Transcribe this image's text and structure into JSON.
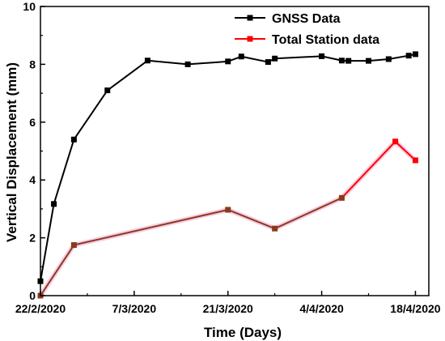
{
  "chart_data": {
    "type": "line",
    "xlabel": "Time (Days)",
    "ylabel": "Vertical Displacement (mm)",
    "xlim": [
      "2020-02-22",
      "2020-04-20"
    ],
    "ylim": [
      0,
      10
    ],
    "x_ticks": [
      {
        "date": "2020-02-22",
        "label": "22/2/2020"
      },
      {
        "date": "2020-03-07",
        "label": "7/3/2020"
      },
      {
        "date": "2020-03-21",
        "label": "21/3/2020"
      },
      {
        "date": "2020-04-04",
        "label": "4/4/2020"
      },
      {
        "date": "2020-04-18",
        "label": "18/4/2020"
      }
    ],
    "y_ticks": [
      0,
      2,
      4,
      6,
      8,
      10
    ],
    "legend_position": "top-right",
    "grid": false,
    "series": [
      {
        "name": "GNSS Data",
        "color": "#000000",
        "marker": "square",
        "points": [
          {
            "x": "2020-02-22",
            "y": 0.5
          },
          {
            "x": "2020-02-24",
            "y": 3.17
          },
          {
            "x": "2020-02-27",
            "y": 5.4
          },
          {
            "x": "2020-03-03",
            "y": 7.1
          },
          {
            "x": "2020-03-09",
            "y": 8.13
          },
          {
            "x": "2020-03-15",
            "y": 8.0
          },
          {
            "x": "2020-03-21",
            "y": 8.1
          },
          {
            "x": "2020-03-23",
            "y": 8.27
          },
          {
            "x": "2020-03-27",
            "y": 8.08
          },
          {
            "x": "2020-03-28",
            "y": 8.2
          },
          {
            "x": "2020-04-04",
            "y": 8.28
          },
          {
            "x": "2020-04-07",
            "y": 8.13
          },
          {
            "x": "2020-04-08",
            "y": 8.12
          },
          {
            "x": "2020-04-11",
            "y": 8.12
          },
          {
            "x": "2020-04-14",
            "y": 8.18
          },
          {
            "x": "2020-04-17",
            "y": 8.3
          },
          {
            "x": "2020-04-18",
            "y": 8.35
          }
        ]
      },
      {
        "name": "Total Station data",
        "color": "#ff0000",
        "line_color": "#8b3a1c",
        "marker": "square",
        "points": [
          {
            "x": "2020-02-22",
            "y": 0.0
          },
          {
            "x": "2020-02-27",
            "y": 1.75
          },
          {
            "x": "2020-03-21",
            "y": 2.97
          },
          {
            "x": "2020-03-28",
            "y": 2.32
          },
          {
            "x": "2020-04-07",
            "y": 3.38
          },
          {
            "x": "2020-04-15",
            "y": 5.33
          },
          {
            "x": "2020-04-18",
            "y": 4.68
          }
        ]
      }
    ]
  }
}
